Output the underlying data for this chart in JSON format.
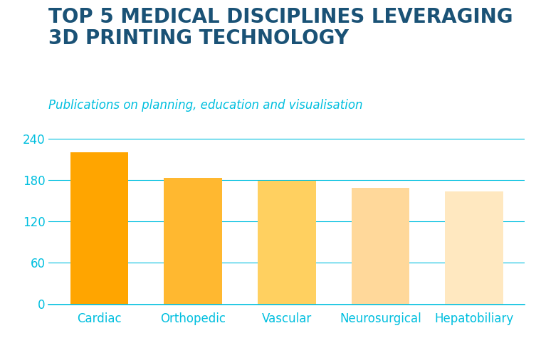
{
  "title_line1": "TOP 5 MEDICAL DISCIPLINES LEVERAGING",
  "title_line2": "3D PRINTING TECHNOLOGY",
  "subtitle": "Publications on planning, education and visualisation",
  "categories": [
    "Cardiac",
    "Orthopedic",
    "Vascular",
    "Neurosurgical",
    "Hepatobiliary"
  ],
  "values": [
    220,
    183,
    179,
    168,
    163
  ],
  "bar_colors": [
    "#FFA500",
    "#FFB830",
    "#FFD060",
    "#FFD89A",
    "#FFE8C0"
  ],
  "title_color": "#1a5276",
  "subtitle_color": "#00BFDF",
  "tick_label_color": "#00BFDF",
  "grid_color": "#00BFDF",
  "background_color": "#FFFFFF",
  "ylim": [
    0,
    260
  ],
  "yticks": [
    0,
    60,
    120,
    180,
    240
  ],
  "title_fontsize": 20,
  "subtitle_fontsize": 12,
  "tick_fontsize": 12
}
